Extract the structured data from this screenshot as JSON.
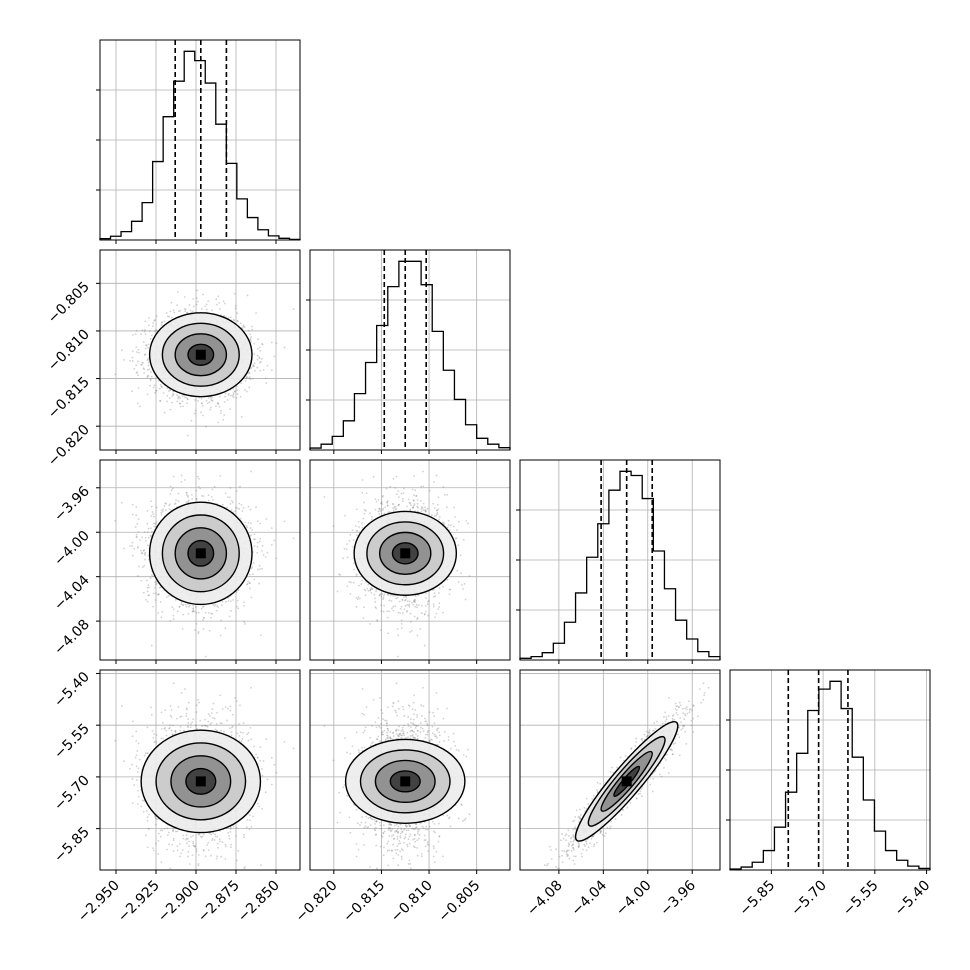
{
  "chart_data": {
    "type": "corner",
    "grid": true,
    "colors": {
      "line": "#000000",
      "grid": "#b0b0b0",
      "points": "#7f7f7f"
    },
    "parameters": [
      {
        "range": [
          -2.96,
          -2.835
        ],
        "quantiles": [
          -2.913,
          -2.897,
          -2.881
        ],
        "ticks": [
          -2.95,
          -2.925,
          -2.9,
          -2.875,
          -2.85
        ],
        "tick_labels": [
          "−2.950",
          "−2.925",
          "−2.900",
          "−2.875",
          "−2.850"
        ],
        "hist": [
          0.7,
          2.0,
          4.5,
          10,
          20,
          42,
          66,
          85,
          101,
          96,
          84,
          62,
          41,
          22,
          12,
          5.5,
          2.2,
          0.9,
          0.3
        ]
      },
      {
        "range": [
          -0.8225,
          -0.8015
        ],
        "quantiles": [
          -0.8147,
          -0.8125,
          -0.8103
        ],
        "ticks": [
          -0.82,
          -0.815,
          -0.81,
          -0.805
        ],
        "tick_labels": [
          "−0.820",
          "−0.815",
          "−0.810",
          "−0.805"
        ],
        "hist": [
          1,
          3,
          7,
          15,
          29,
          45,
          64,
          84,
          97,
          97,
          85,
          61,
          41,
          26,
          13,
          6,
          3,
          1.2
        ]
      },
      {
        "range": [
          -4.115,
          -3.935
        ],
        "quantiles": [
          -4.042,
          -4.019,
          -3.996
        ],
        "ticks": [
          -4.08,
          -4.04,
          -4.0,
          -3.96
        ],
        "tick_labels": [
          "−4.08",
          "−4.04",
          "−4.00",
          "−3.96"
        ],
        "hist": [
          0.8,
          1.6,
          3.5,
          8,
          18,
          32,
          49,
          65,
          81,
          90,
          88,
          77,
          52,
          34,
          19,
          10,
          4,
          1.6
        ]
      },
      {
        "range": [
          -5.97,
          -5.39
        ],
        "quantiles": [
          -5.801,
          -5.713,
          -5.628
        ],
        "ticks": [
          -5.85,
          -5.7,
          -5.55,
          -5.4
        ],
        "tick_labels": [
          "−5.85",
          "−5.70",
          "−5.55",
          "−5.40"
        ],
        "hist": [
          0.5,
          1.5,
          4,
          10,
          22,
          40,
          60,
          82,
          93,
          97,
          83,
          58,
          36,
          20,
          10,
          5,
          2,
          0.8
        ]
      }
    ],
    "yticks_rows": [
      null,
      {
        "ticks": [
          -0.805,
          -0.81,
          -0.815,
          -0.82
        ],
        "tick_labels": [
          "−0.805",
          "−0.810",
          "−0.815",
          "−0.820"
        ]
      },
      {
        "ticks": [
          -3.96,
          -4.0,
          -4.04,
          -4.08
        ],
        "tick_labels": [
          "−3.96",
          "−4.00",
          "−4.04",
          "−4.08"
        ]
      },
      {
        "ticks": [
          -5.4,
          -5.55,
          -5.7,
          -5.85
        ],
        "tick_labels": [
          "−5.40",
          "−5.55",
          "−5.70",
          "−5.85"
        ]
      }
    ],
    "correlations": [
      [
        1,
        0,
        0,
        0
      ],
      [
        0,
        1,
        0,
        0
      ],
      [
        0,
        0,
        1,
        0.93
      ],
      [
        0,
        0,
        0.93,
        1
      ]
    ]
  }
}
